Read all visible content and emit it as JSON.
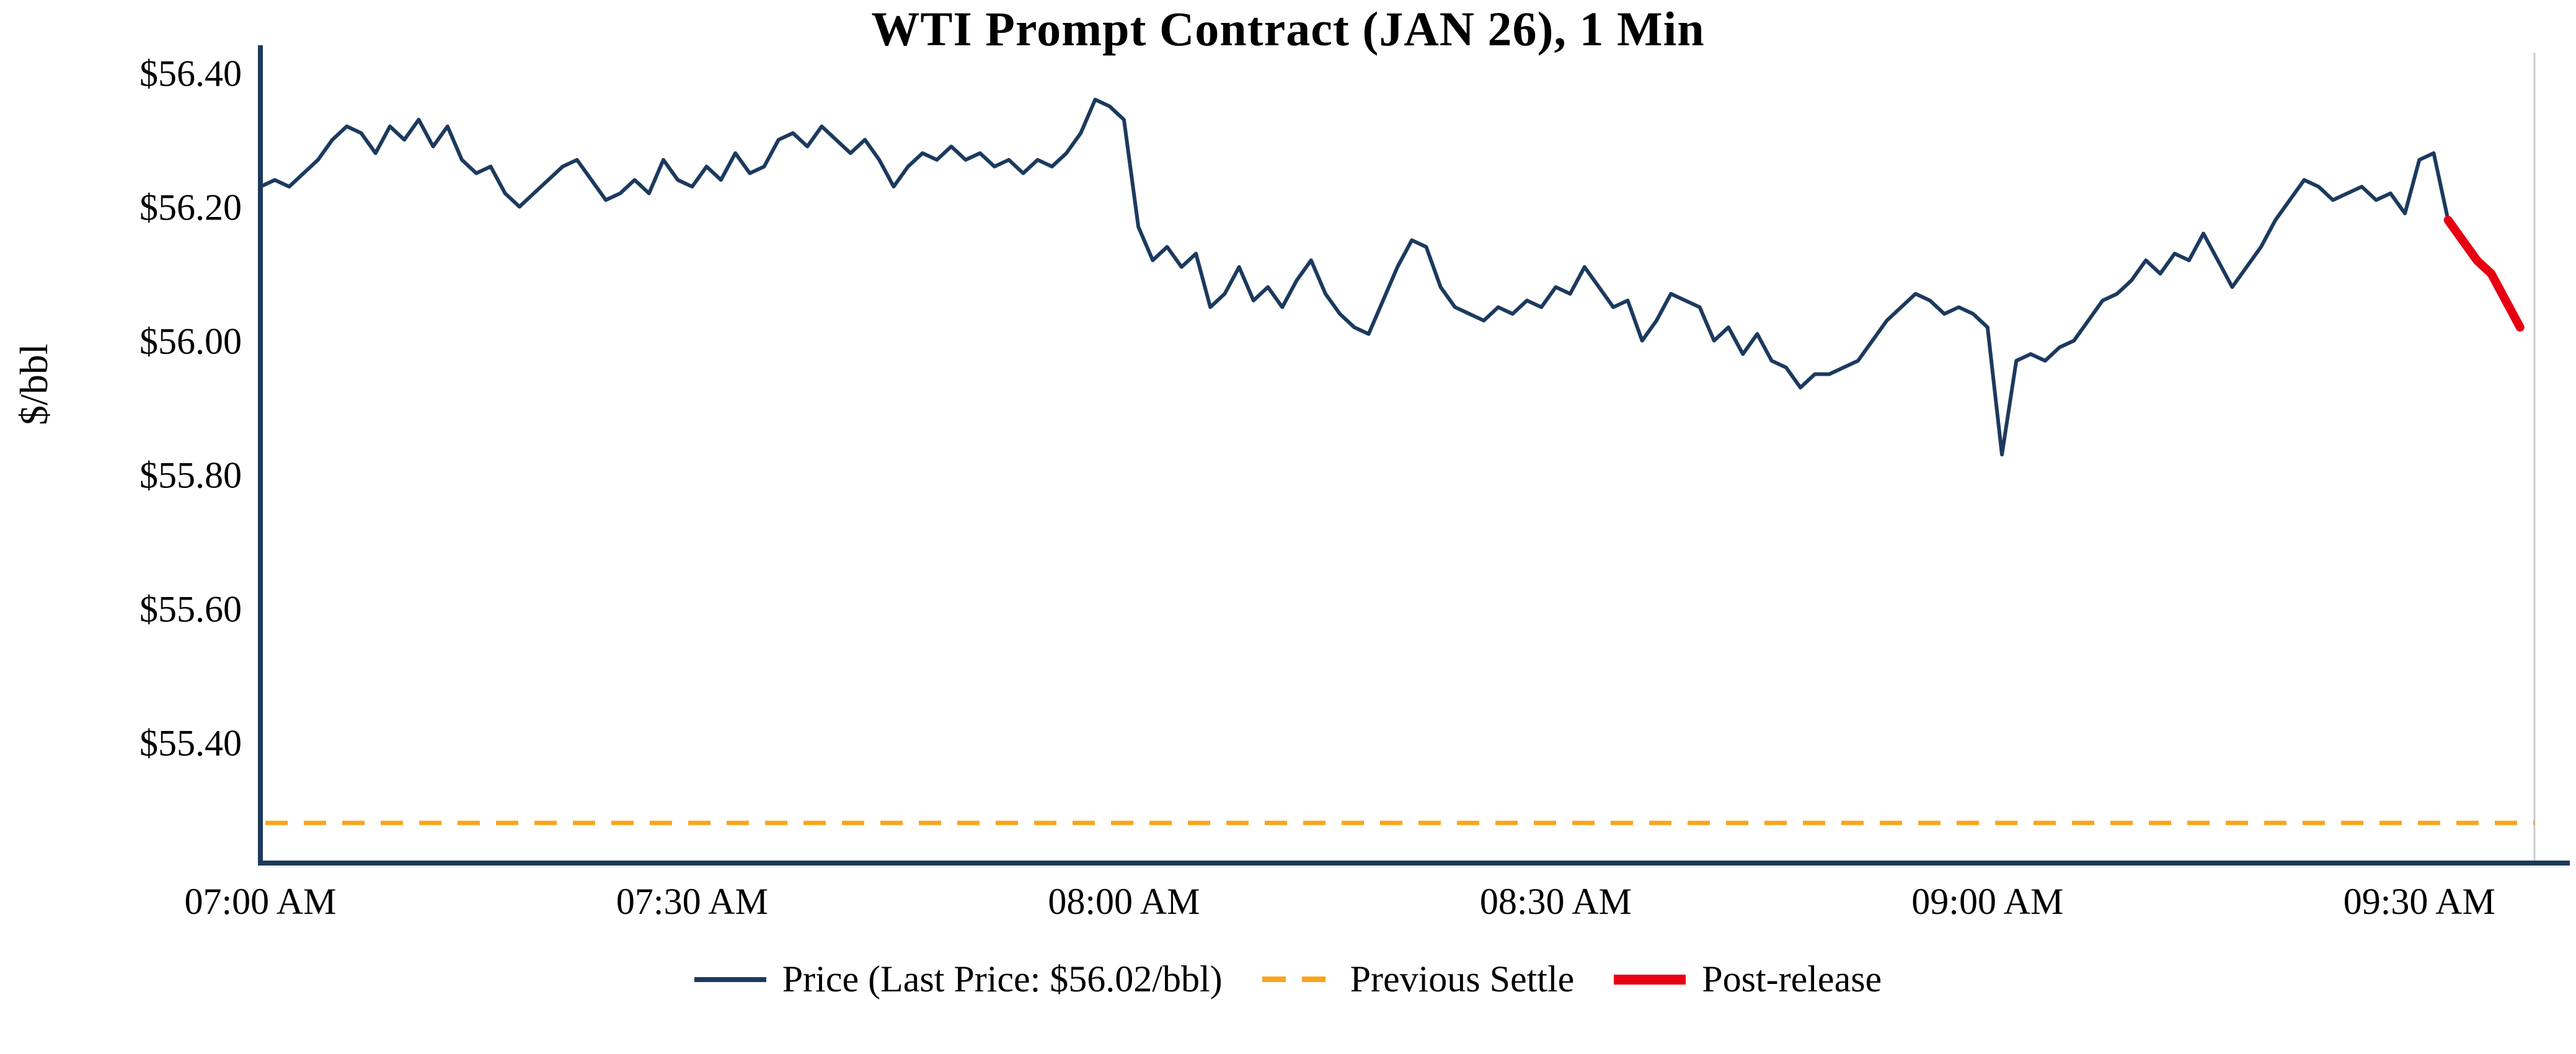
{
  "title": "WTI Prompt Contract (JAN 26), 1 Min",
  "y_axis_label": "$/bbl",
  "legend": {
    "price": {
      "label": "Price (Last Price: $56.02/bbl)",
      "color": "#1c3a5e"
    },
    "previous_settle": {
      "label": "Previous Settle",
      "color": "#f9a51b"
    },
    "post_release": {
      "label": "Post-release",
      "color": "#e60012"
    }
  },
  "chart_data": {
    "type": "line",
    "title": "WTI Prompt Contract (JAN 26), 1 Min",
    "ylabel": "$/bbl",
    "x_tick_labels": [
      "07:00 AM",
      "07:30 AM",
      "08:00 AM",
      "08:30 AM",
      "09:00 AM",
      "09:30 AM"
    ],
    "x_tick_minutes": [
      0,
      30,
      60,
      90,
      120,
      150
    ],
    "y_tick_labels": [
      "$56.40",
      "$56.20",
      "$56.00",
      "$55.80",
      "$55.60",
      "$55.40"
    ],
    "y_tick_values": [
      56.4,
      56.2,
      56.0,
      55.8,
      55.6,
      55.4
    ],
    "x_range_minutes": [
      0,
      158
    ],
    "y_range": [
      55.22,
      56.43
    ],
    "start_time": "07:00 AM",
    "interval": "1 Min",
    "last_price": 56.02,
    "previous_settle": 55.28,
    "axis_color": "#1c3a5e",
    "series": [
      {
        "name": "Price",
        "color": "#1c3a5e",
        "width": 6,
        "style": "solid",
        "start_minute": 0,
        "values": [
          56.23,
          56.24,
          56.23,
          56.25,
          56.27,
          56.3,
          56.32,
          56.31,
          56.28,
          56.32,
          56.3,
          56.33,
          56.29,
          56.32,
          56.27,
          56.25,
          56.26,
          56.22,
          56.2,
          56.22,
          56.24,
          56.26,
          56.27,
          56.24,
          56.21,
          56.22,
          56.24,
          56.22,
          56.27,
          56.24,
          56.23,
          56.26,
          56.24,
          56.28,
          56.25,
          56.26,
          56.3,
          56.31,
          56.29,
          56.32,
          56.3,
          56.28,
          56.3,
          56.27,
          56.23,
          56.26,
          56.28,
          56.27,
          56.29,
          56.27,
          56.28,
          56.26,
          56.27,
          56.25,
          56.27,
          56.26,
          56.28,
          56.31,
          56.36,
          56.35,
          56.33,
          56.17,
          56.12,
          56.14,
          56.11,
          56.13,
          56.05,
          56.07,
          56.11,
          56.06,
          56.08,
          56.05,
          56.09,
          56.12,
          56.07,
          56.04,
          56.02,
          56.01,
          56.06,
          56.11,
          56.15,
          56.14,
          56.08,
          56.05,
          56.04,
          56.03,
          56.05,
          56.04,
          56.06,
          56.05,
          56.08,
          56.07,
          56.11,
          56.08,
          56.05,
          56.06,
          56.0,
          56.03,
          56.07,
          56.06,
          56.05,
          56.0,
          56.02,
          55.98,
          56.01,
          55.97,
          55.96,
          55.93,
          55.95,
          55.95,
          55.96,
          55.97,
          56.0,
          56.03,
          56.05,
          56.07,
          56.06,
          56.04,
          56.05,
          56.04,
          56.02,
          55.83,
          55.97,
          55.98,
          55.97,
          55.99,
          56.0,
          56.03,
          56.06,
          56.07,
          56.09,
          56.12,
          56.1,
          56.13,
          56.12,
          56.16,
          56.12,
          56.08,
          56.11,
          56.14,
          56.18,
          56.21,
          56.24,
          56.23,
          56.21,
          56.22,
          56.23,
          56.21,
          56.22,
          56.19,
          56.27,
          56.28,
          56.18
        ]
      },
      {
        "name": "Previous Settle",
        "color": "#f9a51b",
        "width": 7,
        "style": "dashed",
        "constant": 55.28
      },
      {
        "name": "Post-release",
        "color": "#e60012",
        "width": 14,
        "style": "solid",
        "start_minute": 152,
        "values": [
          56.18,
          56.15,
          56.12,
          56.1,
          56.06,
          56.02
        ]
      }
    ]
  }
}
